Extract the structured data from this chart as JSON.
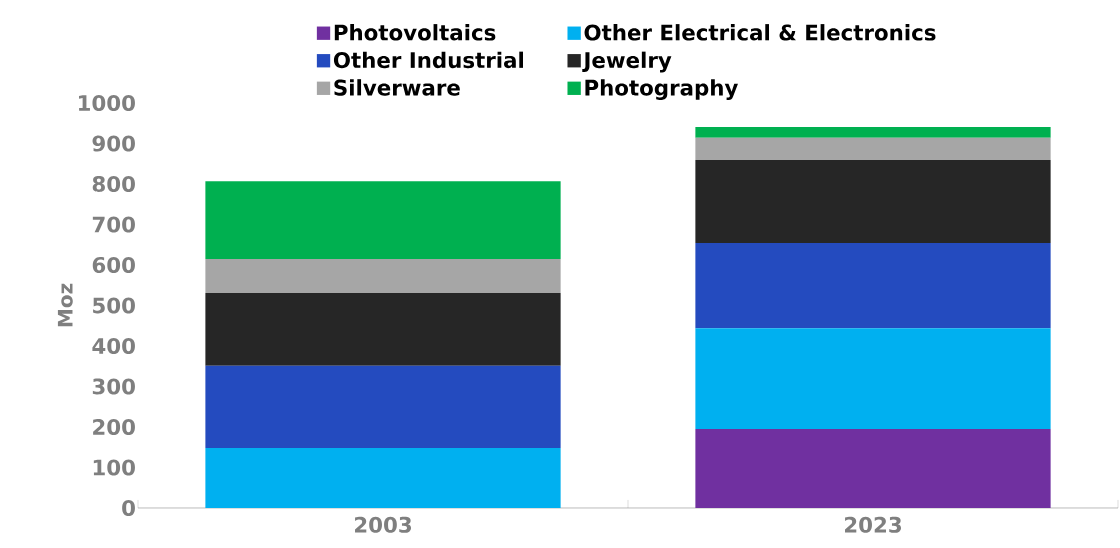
{
  "chart_data": {
    "type": "bar",
    "stacked": true,
    "ylabel": "Moz",
    "categories": [
      "2003",
      "2023"
    ],
    "ylim": [
      0,
      1000
    ],
    "yticks": [
      0,
      100,
      200,
      300,
      400,
      500,
      600,
      700,
      800,
      900,
      1000
    ],
    "legend": "top",
    "series": [
      {
        "name": "Photovoltaics",
        "color": "#7030a0",
        "values": [
          0,
          195
        ]
      },
      {
        "name": "Other Electrical & Electronics",
        "color": "#00b0f0",
        "values": [
          148,
          249
        ]
      },
      {
        "name": "Other Industrial",
        "color": "#244bbf",
        "values": [
          203,
          210
        ]
      },
      {
        "name": "Jewelry",
        "color": "#262626",
        "values": [
          180,
          205
        ]
      },
      {
        "name": "Silverware",
        "color": "#a6a6a6",
        "values": [
          84,
          55
        ]
      },
      {
        "name": "Photography",
        "color": "#00b050",
        "values": [
          192,
          27
        ]
      }
    ]
  }
}
